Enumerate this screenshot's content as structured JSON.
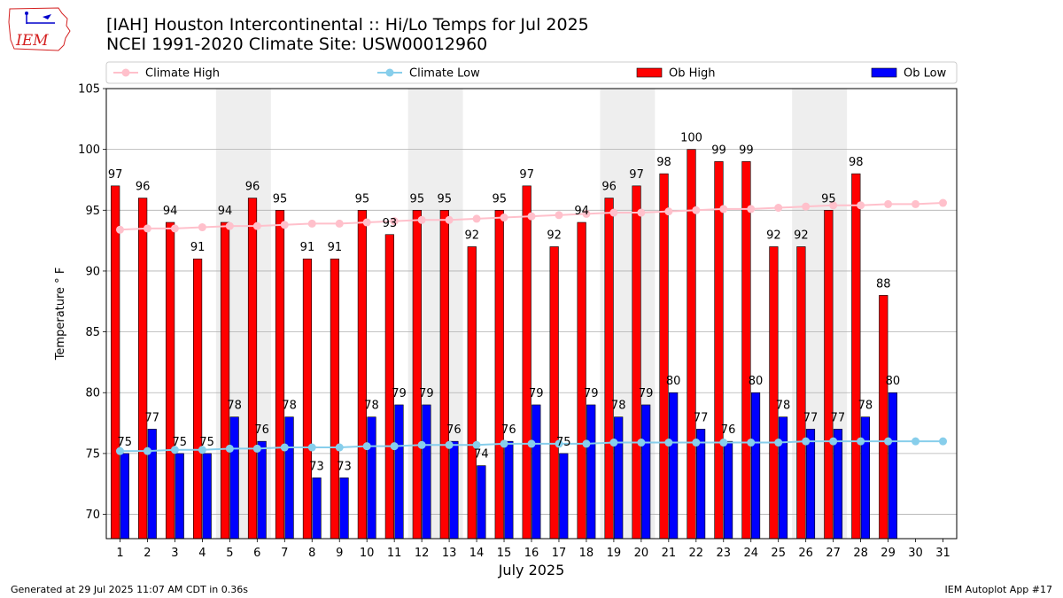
{
  "logo": {
    "text": "IEM",
    "colors": {
      "text": "#d42020",
      "line": "#d42020",
      "stroke": "#0000cc"
    }
  },
  "title": {
    "line1": "[IAH] Houston Intercontinental :: Hi/Lo Temps for Jul 2025",
    "line2": "NCEI 1991-2020 Climate Site: USW00012960"
  },
  "footer": {
    "left": "Generated at 29 Jul 2025 11:07 AM CDT in 0.36s",
    "right": "IEM Autoplot App #17"
  },
  "chart_data": {
    "type": "bar",
    "xlabel": "July 2025",
    "ylabel": "Temperature ° F",
    "ylim": [
      68,
      105
    ],
    "yticks": [
      70,
      75,
      80,
      85,
      90,
      95,
      100,
      105
    ],
    "grid": "horizontal",
    "legend_position": "top",
    "weekend_shading": [
      [
        5,
        6
      ],
      [
        12,
        13
      ],
      [
        19,
        20
      ],
      [
        26,
        27
      ]
    ],
    "categories": [
      "1",
      "2",
      "3",
      "4",
      "5",
      "6",
      "7",
      "8",
      "9",
      "10",
      "11",
      "12",
      "13",
      "14",
      "15",
      "16",
      "17",
      "18",
      "19",
      "20",
      "21",
      "22",
      "23",
      "24",
      "25",
      "26",
      "27",
      "28",
      "29",
      "30",
      "31"
    ],
    "series": [
      {
        "name": "Climate High",
        "kind": "line",
        "color": "#ffc0cb",
        "values": [
          93.4,
          93.5,
          93.5,
          93.6,
          93.7,
          93.7,
          93.8,
          93.9,
          93.9,
          94.0,
          94.1,
          94.2,
          94.2,
          94.3,
          94.4,
          94.5,
          94.6,
          94.7,
          94.8,
          94.8,
          94.9,
          95.0,
          95.1,
          95.1,
          95.2,
          95.3,
          95.4,
          95.4,
          95.5,
          95.5,
          95.6
        ]
      },
      {
        "name": "Climate Low",
        "kind": "line",
        "color": "#87ceeb",
        "values": [
          75.2,
          75.2,
          75.3,
          75.3,
          75.4,
          75.4,
          75.5,
          75.5,
          75.5,
          75.6,
          75.6,
          75.7,
          75.7,
          75.7,
          75.8,
          75.8,
          75.8,
          75.8,
          75.9,
          75.9,
          75.9,
          75.9,
          75.9,
          75.9,
          75.9,
          76.0,
          76.0,
          76.0,
          76.0,
          76.0,
          76.0
        ]
      },
      {
        "name": "Ob High",
        "kind": "bar",
        "color": "#ff0000",
        "values": [
          97,
          96,
          94,
          91,
          94,
          96,
          95,
          91,
          91,
          95,
          93,
          95,
          95,
          92,
          95,
          97,
          92,
          94,
          96,
          97,
          98,
          100,
          99,
          99,
          92,
          92,
          95,
          98,
          88,
          null,
          null
        ]
      },
      {
        "name": "Ob Low",
        "kind": "bar",
        "color": "#0000ff",
        "values": [
          75,
          77,
          75,
          75,
          78,
          76,
          78,
          73,
          73,
          78,
          79,
          79,
          76,
          74,
          76,
          79,
          75,
          79,
          78,
          79,
          80,
          77,
          76,
          80,
          78,
          77,
          77,
          78,
          80,
          null,
          null
        ]
      }
    ]
  }
}
